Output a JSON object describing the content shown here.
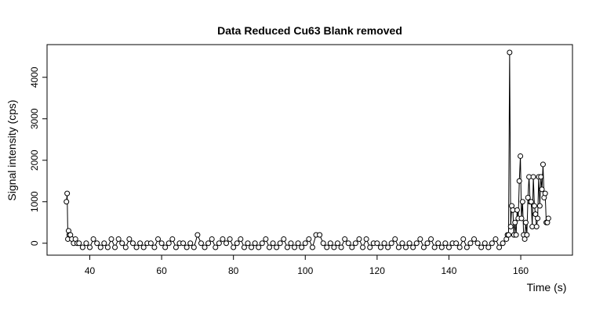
{
  "chart_data": {
    "type": "line",
    "title": "Data Reduced Cu63 Blank removed",
    "xlabel": "Time (s)",
    "ylabel": "Signal intensity (cps)",
    "x": [
      33.5,
      33.7,
      33.9,
      34.1,
      34.3,
      34.6,
      35,
      35.5,
      36,
      36.5,
      37,
      38,
      39,
      40,
      41,
      42,
      43,
      44,
      45,
      46,
      47,
      48,
      49,
      50,
      51,
      52,
      53,
      54,
      55,
      56,
      57,
      58,
      59,
      60,
      61,
      62,
      63,
      64,
      65,
      66,
      67,
      68,
      69,
      70,
      71,
      72,
      73,
      74,
      75,
      76,
      77,
      78,
      79,
      80,
      81,
      82,
      83,
      84,
      85,
      86,
      87,
      88,
      89,
      90,
      91,
      92,
      93,
      94,
      95,
      96,
      97,
      98,
      99,
      100,
      101,
      102,
      103,
      104,
      105,
      106,
      107,
      108,
      109,
      110,
      111,
      112,
      113,
      114,
      115,
      116,
      117,
      118,
      119,
      120,
      121,
      122,
      123,
      124,
      125,
      126,
      127,
      128,
      129,
      130,
      131,
      132,
      133,
      134,
      135,
      136,
      137,
      138,
      139,
      140,
      141,
      142,
      143,
      144,
      145,
      146,
      147,
      148,
      149,
      150,
      151,
      152,
      153,
      154,
      155,
      156.0,
      156.3,
      156.6,
      156.9,
      157.2,
      157.5,
      157.8,
      158.1,
      158.4,
      158.7,
      159.0,
      159.3,
      159.6,
      159.9,
      160.2,
      160.5,
      160.8,
      161.1,
      161.4,
      161.7,
      162.0,
      162.3,
      162.6,
      162.9,
      163.2,
      163.5,
      163.8,
      164.1,
      164.4,
      164.7,
      165.0,
      165.3,
      165.6,
      165.9,
      166.2,
      166.5,
      166.8,
      167.1,
      167.4,
      167.7
    ],
    "values": [
      1000,
      1200,
      100,
      300,
      200,
      200,
      100,
      0,
      100,
      0,
      0,
      -100,
      0,
      -100,
      100,
      0,
      -100,
      0,
      -100,
      100,
      -100,
      100,
      0,
      -100,
      100,
      0,
      -100,
      0,
      -100,
      0,
      0,
      -100,
      100,
      0,
      -100,
      0,
      100,
      -100,
      0,
      0,
      -100,
      0,
      -100,
      200,
      0,
      -100,
      0,
      100,
      -100,
      0,
      100,
      0,
      100,
      -100,
      0,
      100,
      -100,
      0,
      -100,
      0,
      -100,
      0,
      100,
      -100,
      0,
      -100,
      0,
      100,
      -100,
      0,
      -100,
      0,
      -100,
      0,
      100,
      -100,
      200,
      200,
      0,
      -100,
      0,
      -100,
      0,
      -100,
      100,
      0,
      -100,
      0,
      100,
      -100,
      100,
      -100,
      0,
      0,
      -100,
      0,
      -100,
      0,
      100,
      -100,
      0,
      -100,
      0,
      -100,
      0,
      100,
      -100,
      0,
      100,
      -100,
      0,
      -100,
      0,
      -100,
      0,
      0,
      -100,
      100,
      -100,
      0,
      100,
      0,
      -100,
      0,
      -100,
      0,
      100,
      -100,
      0,
      100,
      200,
      200,
      4600,
      400,
      900,
      800,
      200,
      500,
      200,
      800,
      600,
      1500,
      2100,
      600,
      1000,
      200,
      100,
      500,
      200,
      1100,
      1600,
      1000,
      1000,
      400,
      1600,
      900,
      700,
      400,
      600,
      1600,
      900,
      1600,
      1300,
      1900,
      1100,
      1200,
      500,
      500,
      600
    ],
    "xlim": [
      28.1,
      174.4
    ],
    "ylim": [
      -288,
      4788
    ],
    "xticks": [
      40,
      60,
      80,
      100,
      120,
      140,
      160
    ],
    "yticks": [
      0,
      1000,
      2000,
      3000,
      4000
    ],
    "color": "#000000"
  }
}
